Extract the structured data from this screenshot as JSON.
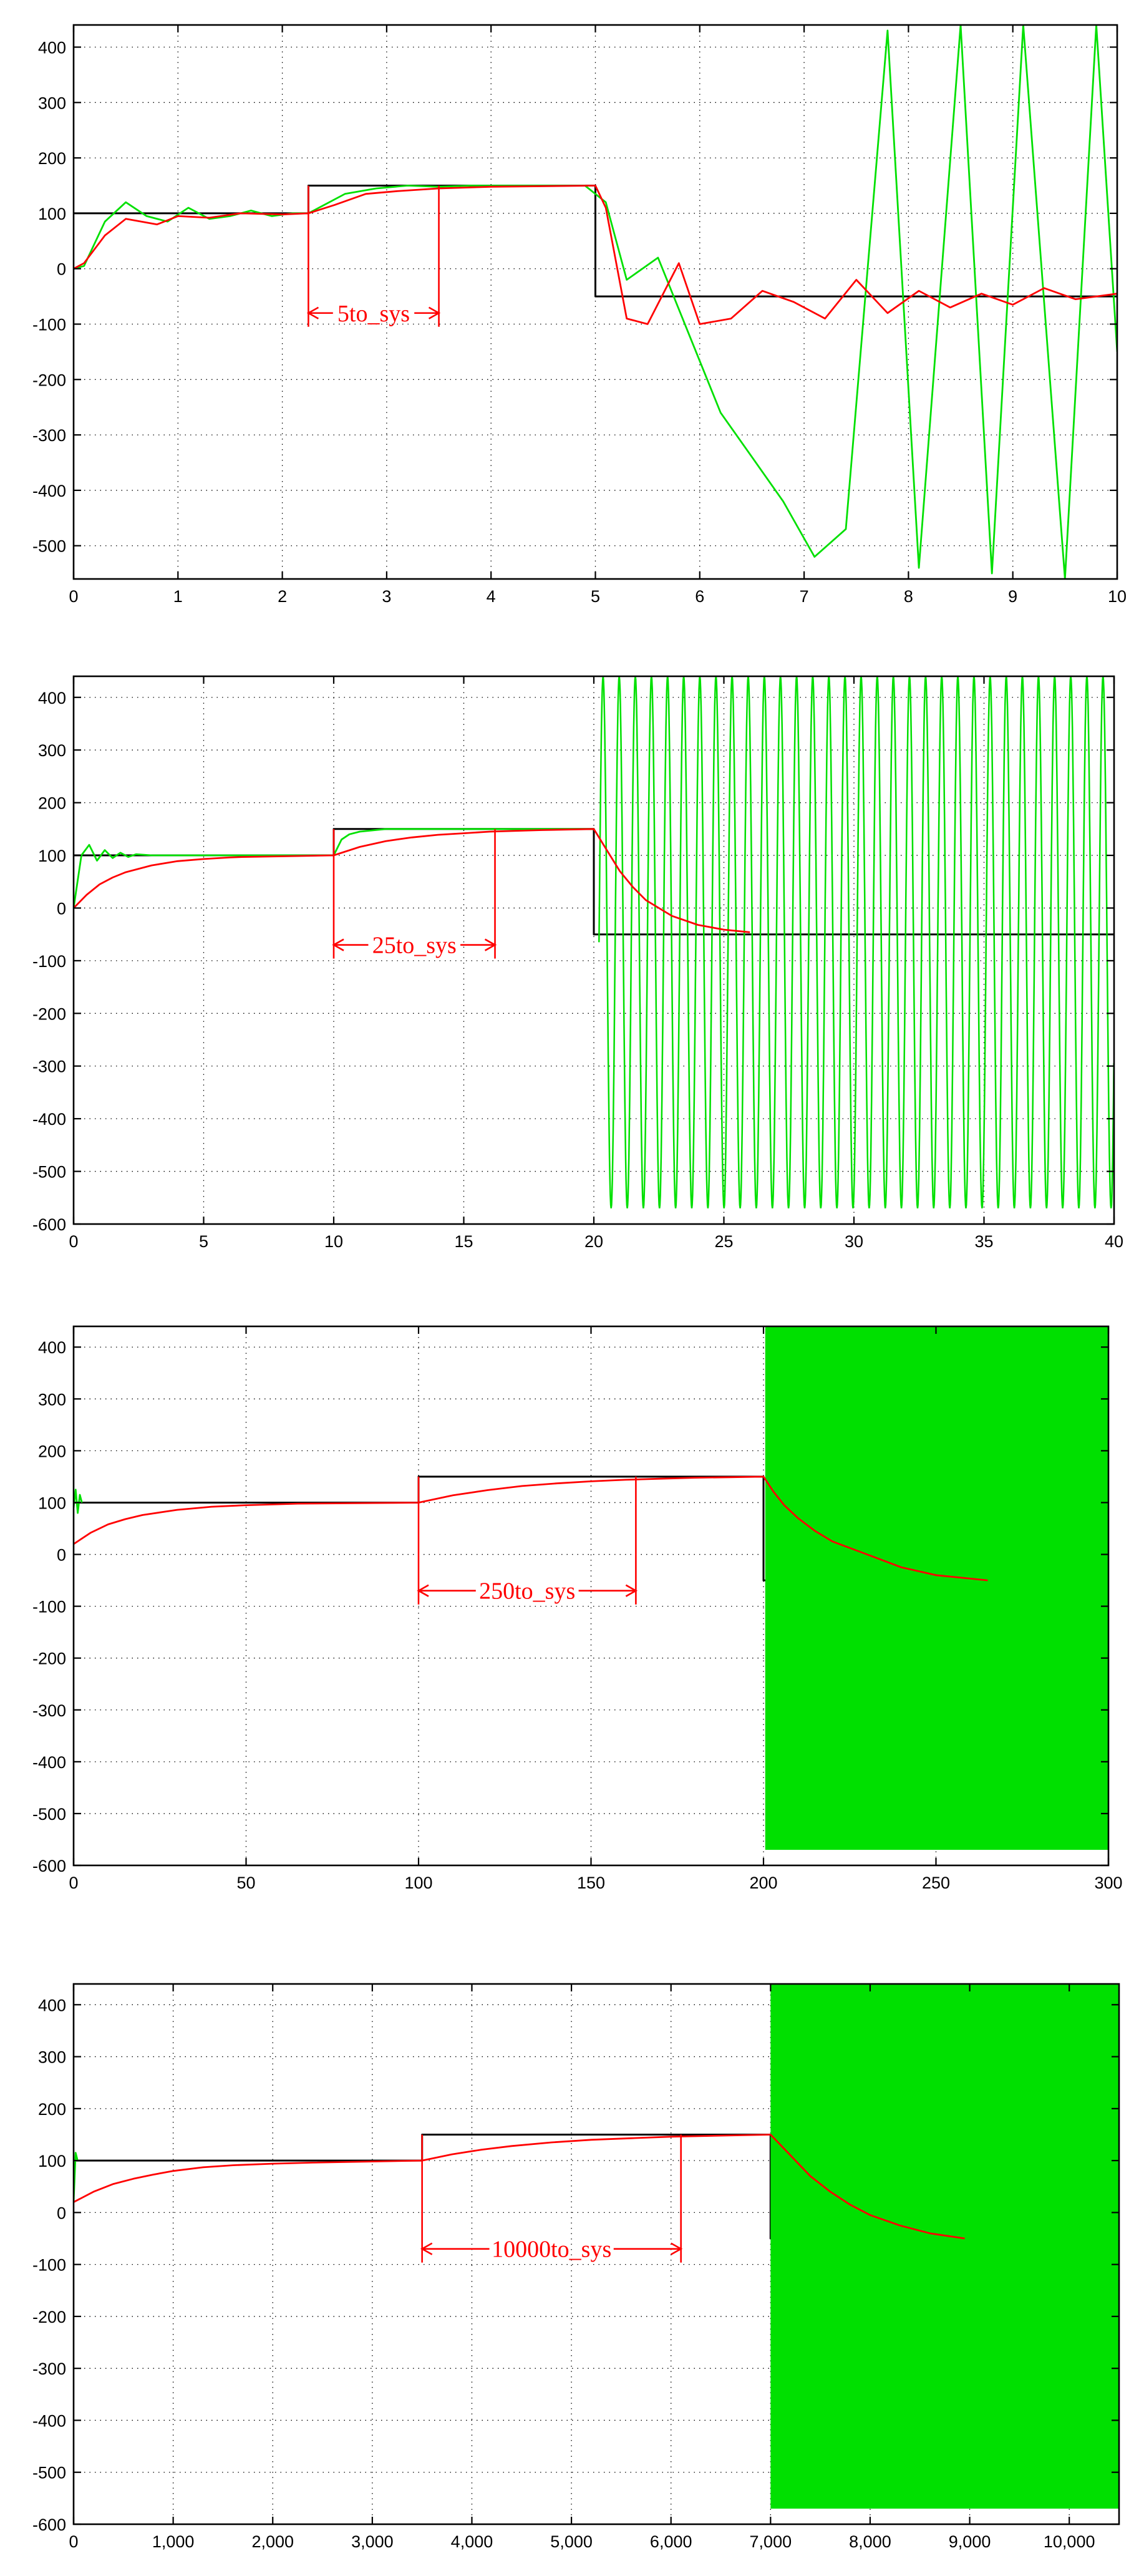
{
  "chart_data": [
    {
      "type": "line",
      "xlim": [
        0,
        10
      ],
      "ylim": [
        -560,
        440
      ],
      "xticks": [
        0,
        1,
        2,
        3,
        4,
        5,
        6,
        7,
        8,
        9,
        10
      ],
      "xtick_labels": [
        "0",
        "1",
        "2",
        "3",
        "4",
        "5",
        "6",
        "7",
        "8",
        "9",
        "10"
      ],
      "yticks": [
        400,
        300,
        200,
        100,
        0,
        -100,
        -200,
        -300,
        -400,
        -500
      ],
      "ytick_labels": [
        "400",
        "300",
        "200",
        "100",
        "0",
        "-100",
        "-200",
        "-300",
        "-400",
        "-500"
      ],
      "grid": true,
      "series": [
        {
          "color": "#000000",
          "kind": "step",
          "x": [
            0,
            2.25,
            2.25,
            5,
            5,
            10
          ],
          "y": [
            100,
            100,
            150,
            150,
            -50,
            -50
          ]
        },
        {
          "color": "#00e000",
          "kind": "line",
          "x": [
            0,
            0.1,
            0.3,
            0.5,
            0.7,
            0.9,
            1.1,
            1.3,
            1.5,
            1.7,
            1.9,
            2.1,
            2.25,
            2.4,
            2.6,
            2.9,
            3.2,
            3.5,
            3.8,
            4.0,
            4.3,
            4.6,
            4.9,
            5.1,
            5.3,
            5.6,
            5.9,
            6.2,
            6.5,
            6.8,
            7.1,
            7.4,
            7.8,
            8.1,
            8.5,
            8.8,
            9.1,
            9.5,
            9.8,
            10
          ],
          "y": [
            0,
            5,
            85,
            120,
            95,
            85,
            110,
            90,
            95,
            105,
            95,
            100,
            100,
            115,
            135,
            145,
            150,
            148,
            150,
            150,
            150,
            150,
            150,
            120,
            -20,
            20,
            -120,
            -260,
            -340,
            -420,
            -520,
            -470,
            430,
            -540,
            440,
            -550,
            440,
            -560,
            440,
            -150
          ]
        },
        {
          "color": "#ff0000",
          "kind": "line",
          "x": [
            0,
            0.1,
            0.3,
            0.5,
            0.8,
            1.0,
            1.3,
            1.6,
            2.0,
            2.25,
            2.5,
            2.8,
            3.1,
            3.5,
            4.0,
            5.0,
            5.1,
            5.3,
            5.5,
            5.8,
            6.0,
            6.3,
            6.6,
            6.9,
            7.2,
            7.5,
            7.8,
            8.1,
            8.4,
            8.7,
            9.0,
            9.3,
            9.6,
            10
          ],
          "y": [
            0,
            10,
            60,
            90,
            80,
            95,
            92,
            100,
            98,
            100,
            115,
            135,
            140,
            145,
            148,
            150,
            110,
            -90,
            -100,
            10,
            -100,
            -90,
            -40,
            -60,
            -90,
            -20,
            -80,
            -40,
            -70,
            -45,
            -65,
            -35,
            -55,
            -45
          ]
        }
      ],
      "annotations": [
        {
          "text": "5to_sys",
          "x1": 2.25,
          "x2": 3.5,
          "y": -80,
          "y_top": 150
        }
      ]
    },
    {
      "type": "line",
      "xlim": [
        0,
        40
      ],
      "ylim": [
        -600,
        440
      ],
      "xticks": [
        0,
        5,
        10,
        15,
        20,
        25,
        30,
        35,
        40
      ],
      "xtick_labels": [
        "0",
        "5",
        "10",
        "15",
        "20",
        "25",
        "30",
        "35",
        "40"
      ],
      "yticks": [
        400,
        300,
        200,
        100,
        0,
        -100,
        -200,
        -300,
        -400,
        -500,
        -600
      ],
      "ytick_labels": [
        "400",
        "300",
        "200",
        "100",
        "0",
        "-100",
        "-200",
        "-300",
        "-400",
        "-500",
        "-600"
      ],
      "grid": true,
      "series": [
        {
          "color": "#000000",
          "kind": "step",
          "x": [
            0,
            10,
            10,
            20,
            20,
            40
          ],
          "y": [
            100,
            100,
            150,
            150,
            -50,
            -50
          ]
        },
        {
          "color": "#00e000",
          "kind": "line",
          "x": [
            0,
            0.3,
            0.6,
            0.9,
            1.2,
            1.5,
            1.8,
            2.1,
            2.4,
            3.0,
            4.0,
            5.0,
            10.0,
            10.3,
            10.6,
            11.0,
            12.0,
            20.0
          ],
          "y": [
            0,
            100,
            120,
            90,
            110,
            95,
            105,
            97,
            102,
            100,
            100,
            100,
            100,
            130,
            140,
            145,
            150,
            150
          ]
        },
        {
          "color": "#00e000",
          "kind": "osc",
          "x_start": 20.2,
          "x_end": 40,
          "amp_max": 440,
          "amp_min": -570,
          "period": 0.62
        },
        {
          "color": "#ff0000",
          "kind": "line",
          "x": [
            0,
            0.5,
            1,
            1.5,
            2,
            3,
            4,
            5,
            6,
            6.5,
            10,
            11,
            12,
            13,
            14,
            15,
            16,
            18,
            20,
            20.5,
            21,
            21.5,
            22,
            23,
            24,
            25,
            26
          ],
          "y": [
            0,
            25,
            45,
            58,
            68,
            81,
            89,
            93,
            96,
            97,
            100,
            116,
            127,
            134,
            139,
            142,
            145,
            148,
            150,
            110,
            70,
            40,
            15,
            -15,
            -32,
            -41,
            -46
          ]
        }
      ],
      "annotations": [
        {
          "text": "25to_sys",
          "x1": 10,
          "x2": 16.2,
          "y": -70,
          "y_top": 150
        }
      ]
    },
    {
      "type": "line",
      "xlim": [
        0,
        300
      ],
      "ylim": [
        -600,
        440
      ],
      "xticks": [
        0,
        50,
        100,
        150,
        200,
        250,
        300
      ],
      "xtick_labels": [
        "0",
        "50",
        "100",
        "150",
        "200",
        "250",
        "300"
      ],
      "yticks": [
        400,
        300,
        200,
        100,
        0,
        -100,
        -200,
        -300,
        -400,
        -500,
        -600
      ],
      "ytick_labels": [
        "400",
        "300",
        "200",
        "100",
        "0",
        "-100",
        "-200",
        "-300",
        "-400",
        "-500",
        "-600"
      ],
      "grid": true,
      "series": [
        {
          "color": "#000000",
          "kind": "step",
          "x": [
            0,
            100,
            100,
            200,
            200,
            300
          ],
          "y": [
            100,
            100,
            150,
            150,
            -50,
            -50
          ]
        },
        {
          "color": "#00e000",
          "kind": "band",
          "x1": 200.5,
          "x2": 300,
          "ymin": -570,
          "ymax": 440
        },
        {
          "color": "#00e000",
          "kind": "line",
          "x": [
            0,
            0.6,
            1.2,
            1.8,
            2.4
          ],
          "y": [
            90,
            125,
            80,
            115,
            100
          ]
        },
        {
          "color": "#ff0000",
          "kind": "line",
          "x": [
            0,
            5,
            10,
            15,
            20,
            30,
            40,
            50,
            60,
            65,
            100,
            110,
            120,
            130,
            140,
            150,
            160,
            170,
            180,
            190,
            200,
            203,
            206,
            210,
            215,
            220,
            230,
            240,
            250,
            265
          ],
          "y": [
            20,
            42,
            58,
            68,
            76,
            86,
            92,
            95,
            97,
            98,
            100,
            114,
            124,
            132,
            137,
            141,
            144,
            146,
            148,
            149,
            150,
            120,
            95,
            70,
            45,
            25,
            0,
            -25,
            -40,
            -50
          ]
        }
      ],
      "annotations": [
        {
          "text": "250to_sys",
          "x1": 100,
          "x2": 163,
          "y": -70,
          "y_top": 150
        }
      ]
    },
    {
      "type": "line",
      "xlim": [
        0,
        10500
      ],
      "ylim": [
        -600,
        440
      ],
      "xticks": [
        0,
        1000,
        2000,
        3000,
        4000,
        5000,
        6000,
        7000,
        8000,
        9000,
        10000
      ],
      "xtick_labels": [
        "0",
        "1,000",
        "2,000",
        "3,000",
        "4,000",
        "5,000",
        "6,000",
        "7,000",
        "8,000",
        "9,000",
        "10,000"
      ],
      "yticks": [
        400,
        300,
        200,
        100,
        0,
        -100,
        -200,
        -300,
        -400,
        -500,
        -600
      ],
      "ytick_labels": [
        "400",
        "300",
        "200",
        "100",
        "0",
        "-100",
        "-200",
        "-300",
        "-400",
        "-500",
        "-600"
      ],
      "grid": true,
      "series": [
        {
          "color": "#000000",
          "kind": "step",
          "x": [
            0,
            3500,
            3500,
            7000,
            7000,
            10500
          ],
          "y": [
            100,
            100,
            150,
            150,
            -50,
            -50
          ]
        },
        {
          "color": "#00e000",
          "kind": "band",
          "x1": 7000,
          "x2": 10500,
          "ymin": -570,
          "ymax": 440
        },
        {
          "color": "#00e000",
          "kind": "line",
          "x": [
            0,
            20,
            40
          ],
          "y": [
            20,
            115,
            100
          ]
        },
        {
          "color": "#ff0000",
          "kind": "line",
          "x": [
            0,
            200,
            400,
            600,
            800,
            1000,
            1300,
            1600,
            2000,
            2400,
            3500,
            3800,
            4100,
            4400,
            4800,
            5200,
            5600,
            6000,
            6500,
            7000,
            7100,
            7250,
            7400,
            7600,
            7800,
            8000,
            8300,
            8600,
            8950
          ],
          "y": [
            20,
            40,
            55,
            65,
            73,
            80,
            87,
            91,
            94,
            96,
            100,
            112,
            121,
            128,
            135,
            140,
            143,
            146,
            148,
            150,
            130,
            100,
            70,
            40,
            15,
            -5,
            -25,
            -40,
            -50
          ]
        }
      ],
      "annotations": [
        {
          "text": "10000to_sys",
          "x1": 3500,
          "x2": 6100,
          "y": -70,
          "y_top": 150
        }
      ]
    }
  ]
}
